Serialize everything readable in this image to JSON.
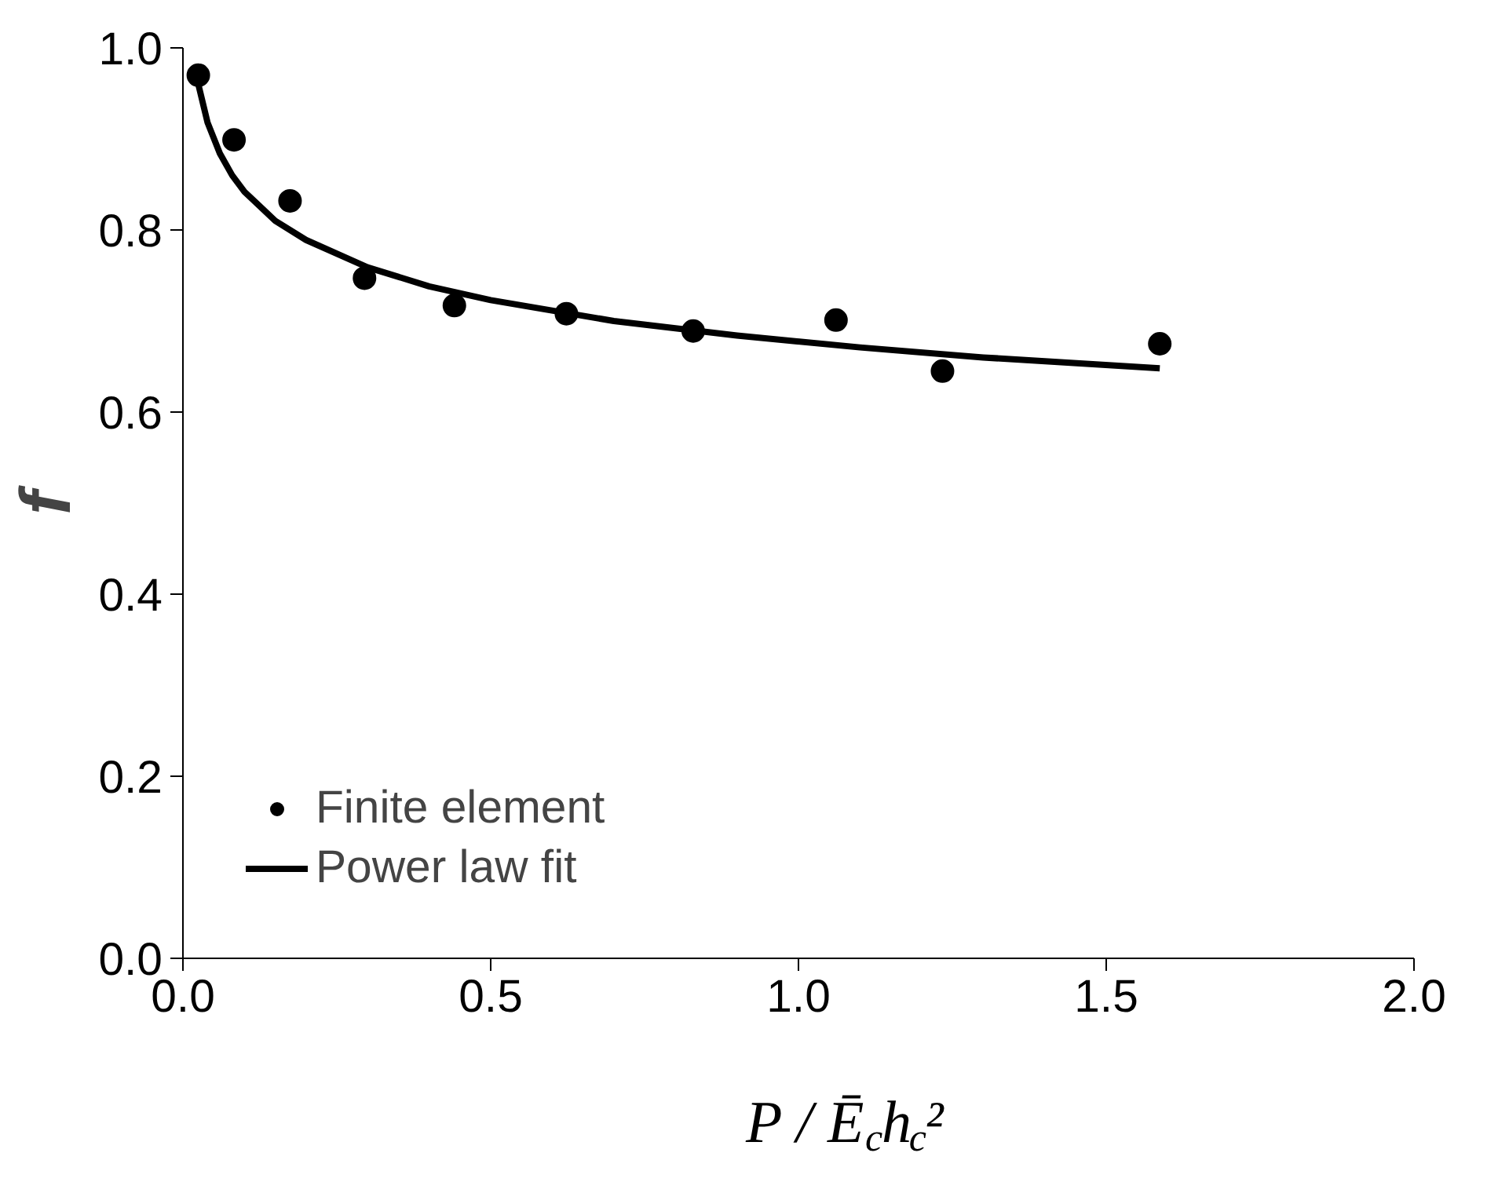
{
  "chart_data": {
    "type": "scatter",
    "xlabel": "P / Ē$_{c}$h$_{c}$²",
    "ylabel": "f",
    "xlim": [
      0,
      2
    ],
    "ylim": [
      0,
      1
    ],
    "xticks": [
      {
        "value": 0,
        "label": "0.0"
      },
      {
        "value": 0.5,
        "label": "0.5"
      },
      {
        "value": 1,
        "label": "1.0"
      },
      {
        "value": 1.5,
        "label": "1.5"
      },
      {
        "value": 2,
        "label": "2.0"
      }
    ],
    "yticks": [
      {
        "value": 0,
        "label": "0.0"
      },
      {
        "value": 0.2,
        "label": "0.2"
      },
      {
        "value": 0.4,
        "label": "0.4"
      },
      {
        "value": 0.6,
        "label": "0.6"
      },
      {
        "value": 0.8,
        "label": "0.8"
      },
      {
        "value": 1,
        "label": "1.0"
      }
    ],
    "grid": false,
    "legend": "bottom left",
    "series": [
      {
        "name": "Finite element",
        "marker": "circle",
        "color": "#000000",
        "x": [
          0.025,
          0.083,
          0.174,
          0.295,
          0.441,
          0.623,
          0.829,
          1.061,
          1.234,
          1.587
        ],
        "values": [
          0.97,
          0.899,
          0.832,
          0.747,
          0.717,
          0.708,
          0.689,
          0.701,
          0.645,
          0.675
        ]
      },
      {
        "name": "Power law fit",
        "type": "line",
        "marker": "none",
        "color": "#000000",
        "line_style": "solid",
        "x": [
          0.025,
          0.04,
          0.06,
          0.08,
          0.1,
          0.15,
          0.2,
          0.3,
          0.4,
          0.5,
          0.7,
          0.9,
          1.1,
          1.3,
          1.587
        ],
        "values": [
          0.96,
          0.918,
          0.884,
          0.86,
          0.842,
          0.81,
          0.789,
          0.759,
          0.738,
          0.723,
          0.7,
          0.684,
          0.671,
          0.66,
          0.648
        ]
      }
    ]
  }
}
